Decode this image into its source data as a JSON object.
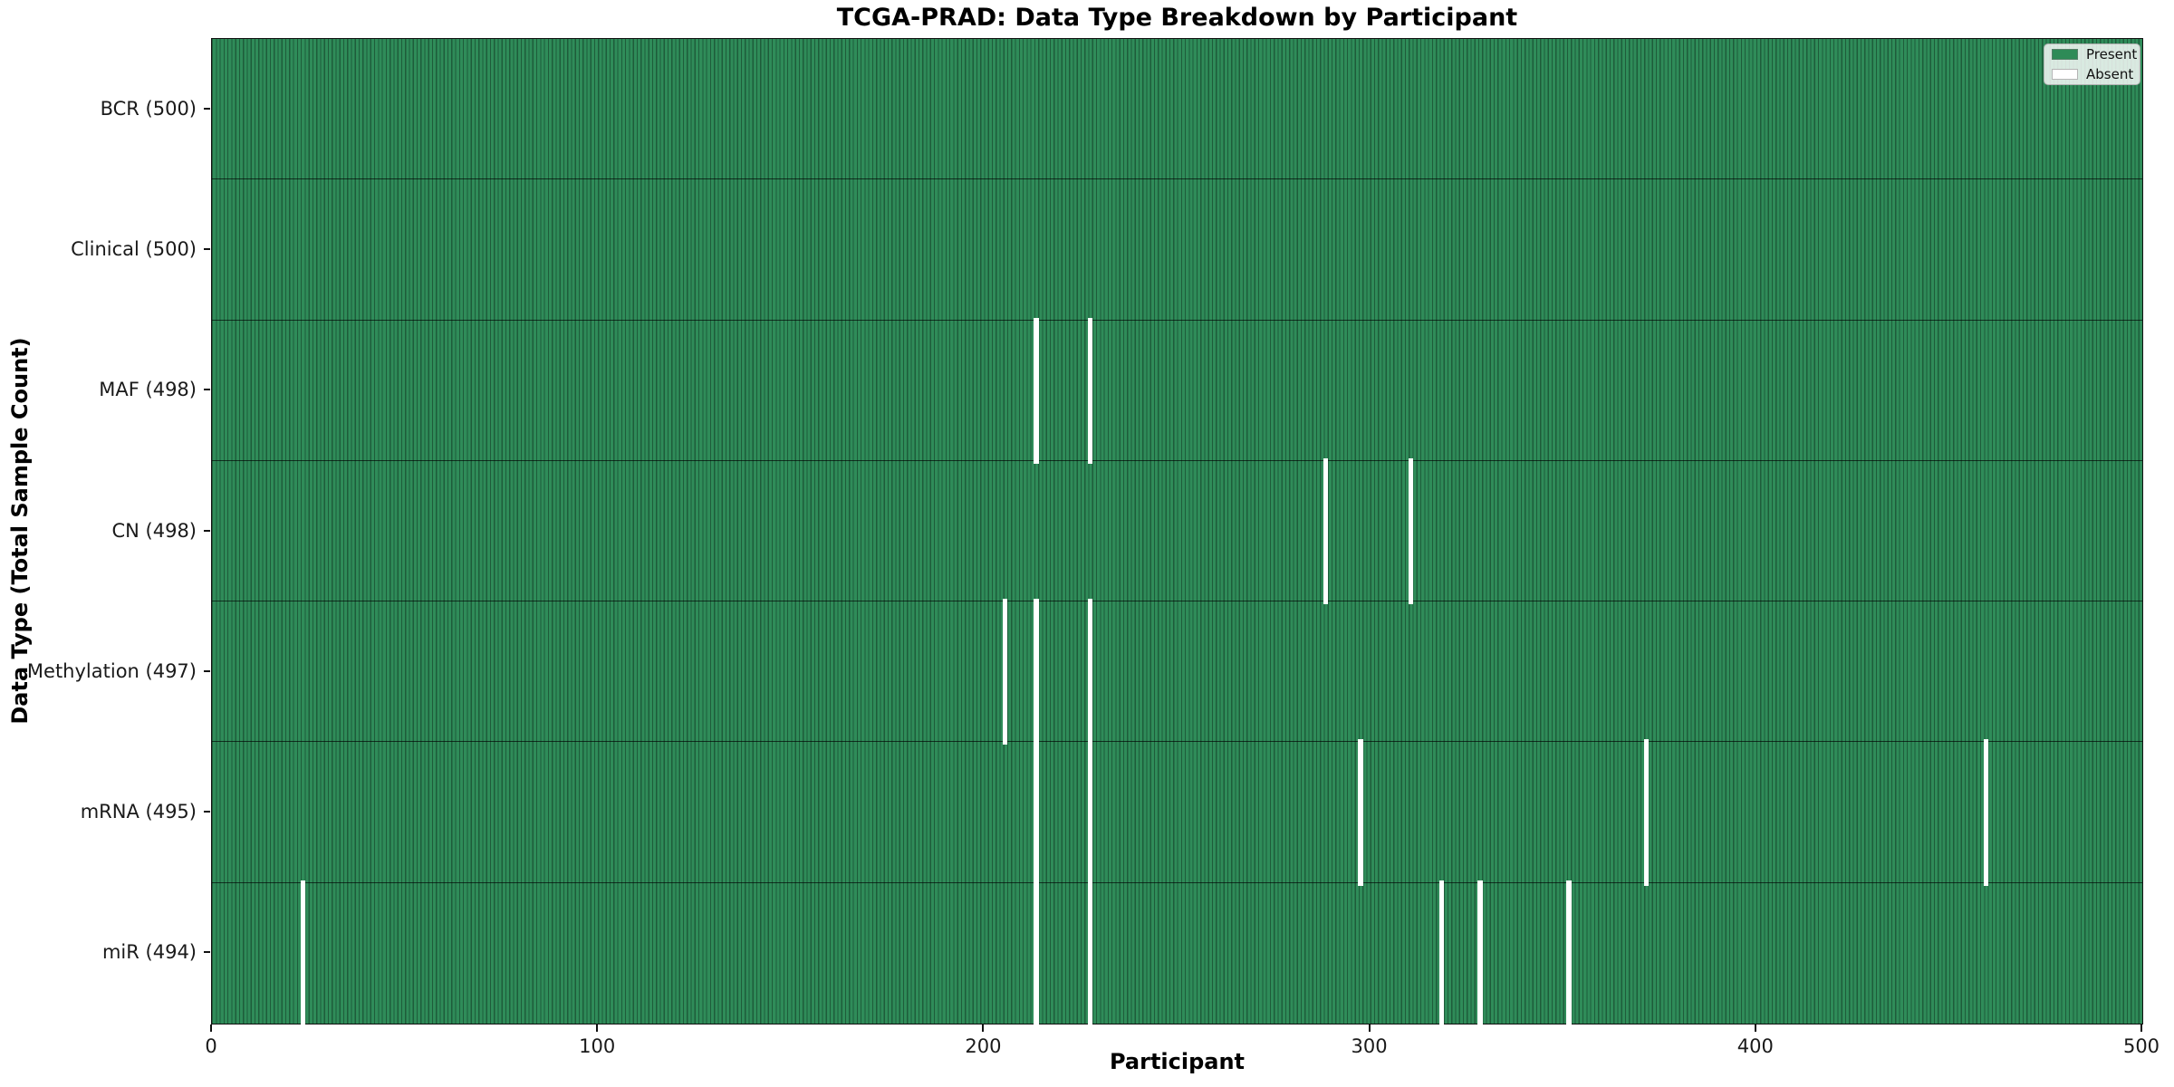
{
  "figure": {
    "title": "TCGA-PRAD: Data Type Breakdown by Participant"
  },
  "axes": {
    "x_label": "Participant",
    "y_label": "Data Type (Total Sample Count)",
    "x_tick_labels": [
      "0",
      "100",
      "200",
      "300",
      "400",
      "500"
    ]
  },
  "legend": {
    "position": "upper right",
    "items": [
      {
        "label": "Present",
        "color": "#2e8b57"
      },
      {
        "label": "Absent",
        "color": "#ffffff"
      }
    ]
  },
  "colors": {
    "present_fill": "#2f8c59",
    "bar_edge_line": "#1e5c3a",
    "absent_fill": "#ffffff",
    "axis_spine": "#111111"
  },
  "chart_data": {
    "type": "heatmap",
    "title": "TCGA-PRAD: Data Type Breakdown by Participant",
    "xlabel": "Participant",
    "ylabel": "Data Type (Total Sample Count)",
    "x_range": [
      0,
      500
    ],
    "x_ticks": [
      0,
      100,
      200,
      300,
      400,
      500
    ],
    "n_participants": 500,
    "legend_entries": [
      "Present",
      "Absent"
    ],
    "legend_position": "upper right",
    "rows": [
      {
        "label": "BCR (500)",
        "data_type": "BCR",
        "total_present": 500,
        "absent_participants": []
      },
      {
        "label": "Clinical (500)",
        "data_type": "Clinical",
        "total_present": 500,
        "absent_participants": []
      },
      {
        "label": "MAF (498)",
        "data_type": "MAF",
        "total_present": 498,
        "absent_participants": [
          213,
          227
        ]
      },
      {
        "label": "CN (498)",
        "data_type": "CN",
        "total_present": 498,
        "absent_participants": [
          288,
          310
        ]
      },
      {
        "label": "Methylation (497)",
        "data_type": "Methylation",
        "total_present": 497,
        "absent_participants": [
          205,
          213,
          227
        ]
      },
      {
        "label": "mRNA (495)",
        "data_type": "mRNA",
        "total_present": 495,
        "absent_participants": [
          213,
          227,
          297,
          371,
          459
        ]
      },
      {
        "label": "miR (494)",
        "data_type": "miR",
        "total_present": 494,
        "absent_participants": [
          23,
          213,
          227,
          318,
          328,
          351
        ]
      }
    ]
  }
}
